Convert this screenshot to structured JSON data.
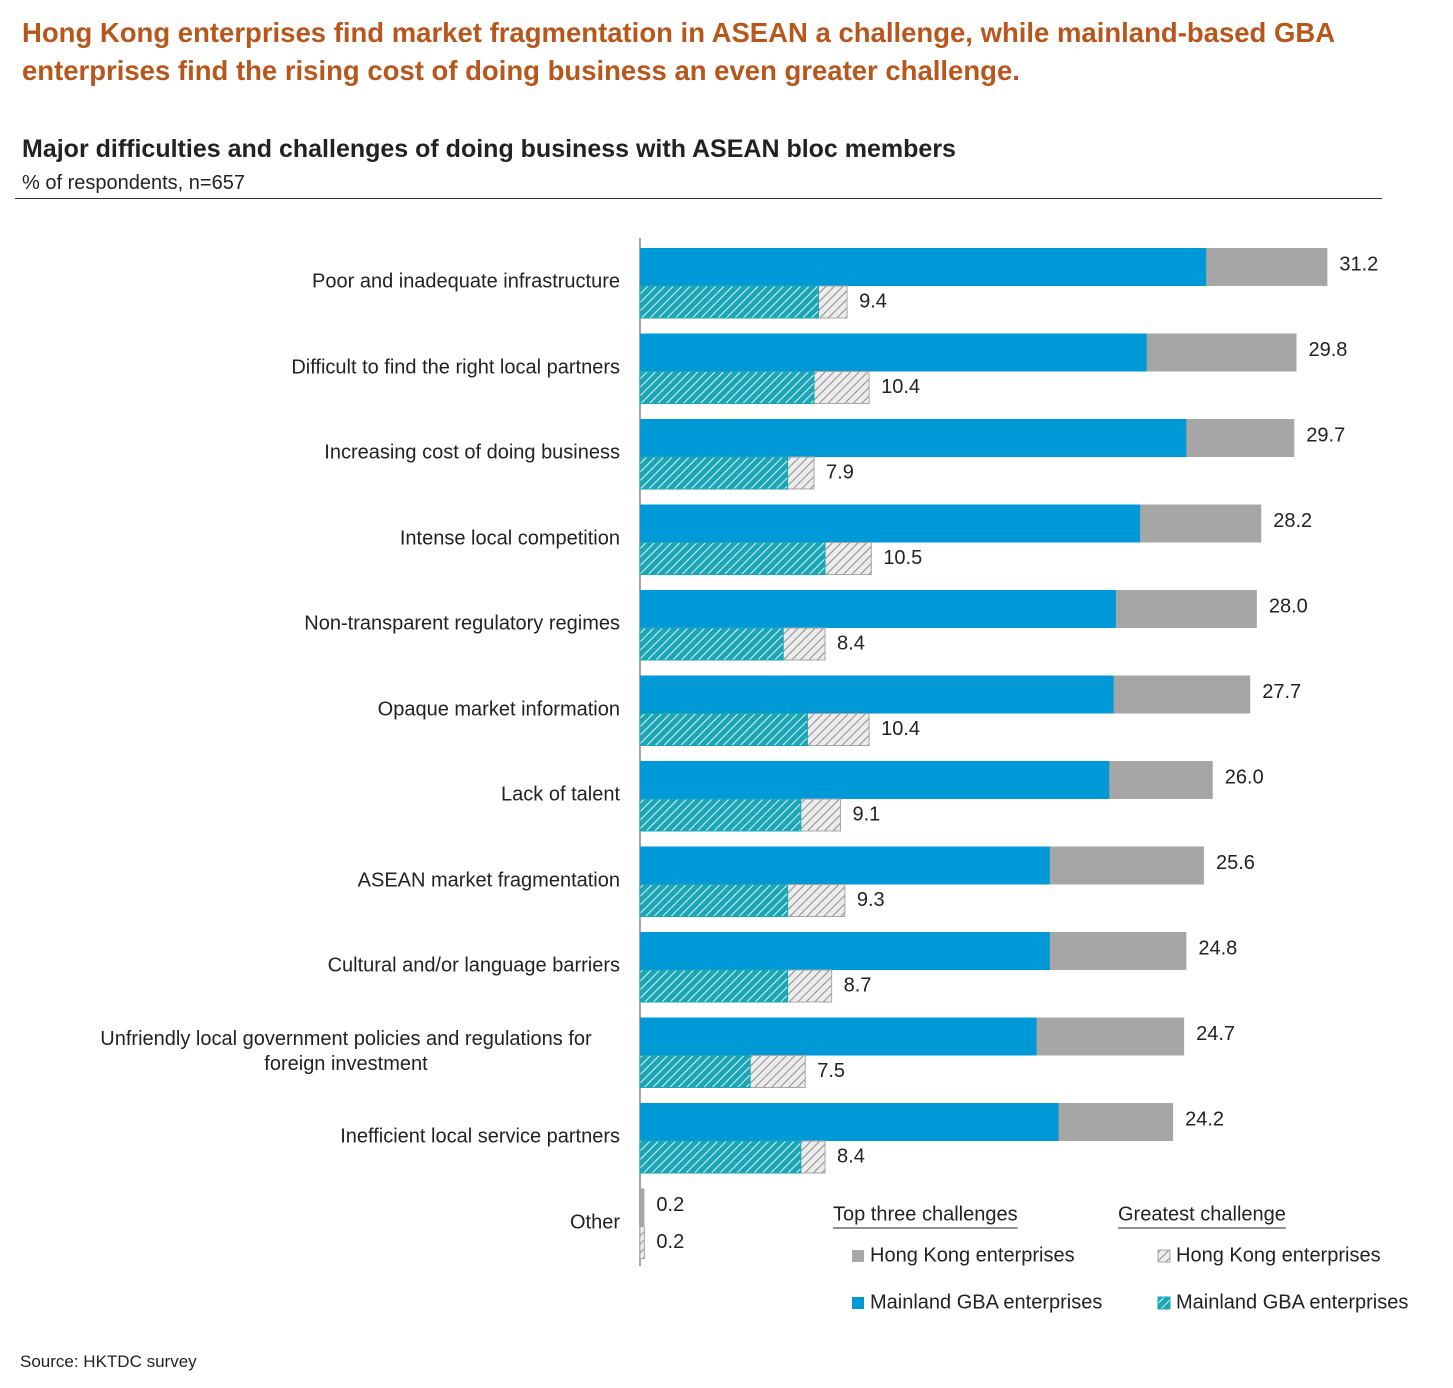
{
  "chart_data": {
    "type": "overlaid-bar",
    "title": "Hong Kong enterprises find market fragmentation in ASEAN a challenge, while mainland-based GBA enterprises find the rising cost of doing business an even greater challenge.",
    "subtitle": "Major difficulties and challenges of doing business with ASEAN bloc members",
    "unit_note": "% of respondents, n=657",
    "source": "Source: HKTDC survey",
    "categories": [
      "Poor and inadequate infrastructure",
      "Difficult to find the right local partners",
      "Increasing cost of doing business",
      "Intense local competition",
      "Non-transparent regulatory regimes",
      "Opaque market information",
      "Lack of talent",
      "ASEAN market fragmentation",
      "Cultural and/or language barriers",
      "Unfriendly local government policies and regulations for foreign investment",
      "Inefficient local service partners",
      "Other"
    ],
    "xlim": [
      0,
      33.5
    ],
    "groups": [
      {
        "name": "Top three challenges",
        "series": [
          {
            "name": "Hong Kong enterprises",
            "color": "#a6a6a6",
            "hatched": false,
            "values": [
              31.2,
              29.8,
              29.7,
              28.2,
              28.0,
              27.7,
              26.0,
              25.6,
              24.8,
              24.7,
              24.2,
              0.2
            ],
            "value_labels": [
              "31.2",
              "29.8",
              "29.7",
              "28.2",
              "28.0",
              "27.7",
              "26.0",
              "25.6",
              "24.8",
              "24.7",
              "24.2",
              "0.2"
            ]
          },
          {
            "name": "Mainland GBA enterprises",
            "color": "#0099d8",
            "hatched": false,
            "values": [
              25.7,
              23.0,
              24.8,
              22.7,
              21.6,
              21.5,
              21.3,
              18.6,
              18.6,
              18.0,
              19.0,
              0
            ]
          }
        ]
      },
      {
        "name": "Greatest challenge",
        "series": [
          {
            "name": "Hong Kong enterprises",
            "color": "#a6a6a6",
            "hatched": true,
            "values": [
              9.4,
              10.4,
              7.9,
              10.5,
              8.4,
              10.4,
              9.1,
              9.3,
              8.7,
              7.5,
              8.4,
              0.2
            ],
            "value_labels": [
              "9.4",
              "10.4",
              "7.9",
              "10.5",
              "8.4",
              "10.4",
              "9.1",
              "9.3",
              "8.7",
              "7.5",
              "8.4",
              "0.2"
            ]
          },
          {
            "name": "Mainland GBA enterprises",
            "color": "#1aa6b7",
            "hatched": true,
            "values": [
              8.1,
              7.9,
              6.7,
              8.4,
              6.5,
              7.6,
              7.3,
              6.7,
              6.7,
              5.0,
              7.3,
              0
            ]
          }
        ]
      }
    ]
  }
}
